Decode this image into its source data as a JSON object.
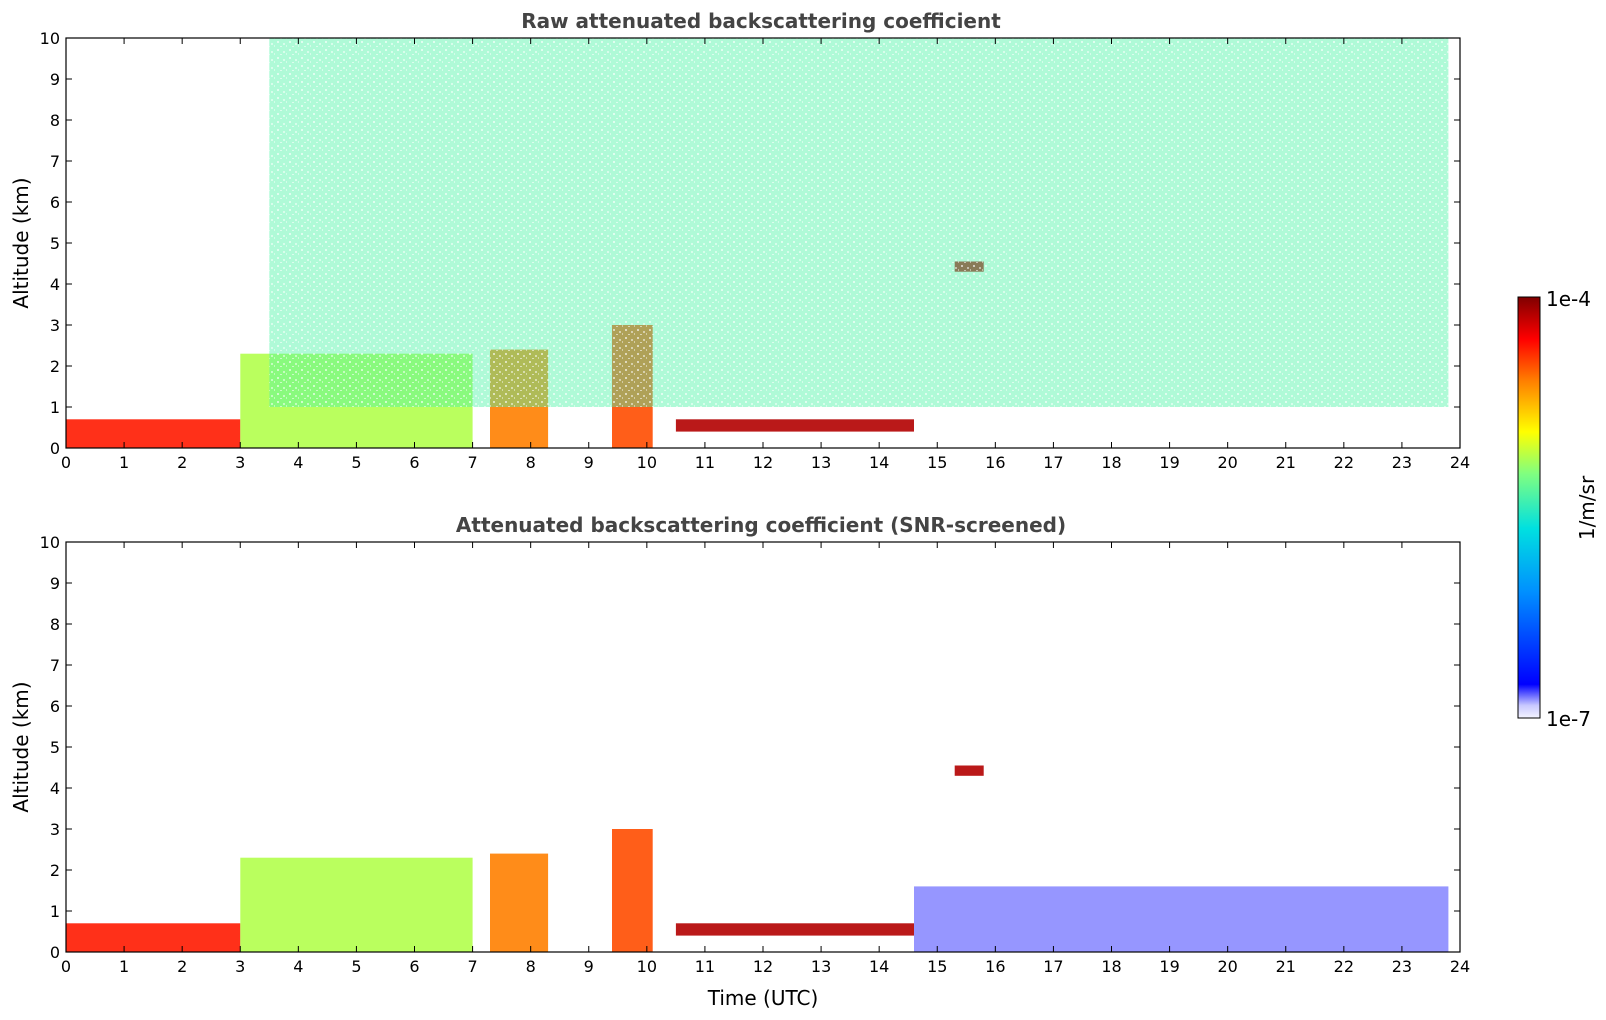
{
  "chart_data": [
    {
      "type": "heatmap",
      "title": "Raw attenuated backscattering coefficient",
      "xlabel": "",
      "ylabel": "Altitude (km)",
      "xlim": [
        0,
        24
      ],
      "ylim": [
        0,
        10
      ],
      "x_ticks": [
        "0",
        "1",
        "2",
        "3",
        "4",
        "5",
        "6",
        "7",
        "8",
        "9",
        "10",
        "11",
        "12",
        "13",
        "14",
        "15",
        "16",
        "17",
        "18",
        "19",
        "20",
        "21",
        "22",
        "23",
        "24"
      ],
      "y_ticks": [
        "0",
        "1",
        "2",
        "3",
        "4",
        "5",
        "6",
        "7",
        "8",
        "9",
        "10"
      ],
      "data_extent_hours": [
        0,
        23.8
      ],
      "features": [
        {
          "name": "near-surface aerosol",
          "t": [
            0,
            3
          ],
          "z": [
            0,
            0.7
          ],
          "level": 0.85
        },
        {
          "name": "boundary-layer clouds",
          "t": [
            3,
            7
          ],
          "z": [
            0,
            2.3
          ],
          "level": 0.55
        },
        {
          "name": "cloud deck",
          "t": [
            7.3,
            8.3
          ],
          "z": [
            0,
            2.4
          ],
          "level": 0.75
        },
        {
          "name": "cloud deck",
          "t": [
            9.4,
            10.1
          ],
          "z": [
            0,
            3.0
          ],
          "level": 0.8
        },
        {
          "name": "thin layer",
          "t": [
            10.5,
            14.6
          ],
          "z": [
            0.4,
            0.7
          ],
          "level": 0.95
        },
        {
          "name": "elevated layer",
          "t": [
            15.3,
            15.8
          ],
          "z": [
            4.3,
            4.55
          ],
          "level": 0.95
        },
        {
          "name": "clear-air background noise",
          "t": [
            3.5,
            23.8
          ],
          "z": [
            1,
            10
          ],
          "level": 0.45
        }
      ]
    },
    {
      "type": "heatmap",
      "title": "Attenuated backscattering coefficient (SNR-screened)",
      "xlabel": "Time (UTC)",
      "ylabel": "Altitude (km)",
      "xlim": [
        0,
        24
      ],
      "ylim": [
        0,
        10
      ],
      "x_ticks": [
        "0",
        "1",
        "2",
        "3",
        "4",
        "5",
        "6",
        "7",
        "8",
        "9",
        "10",
        "11",
        "12",
        "13",
        "14",
        "15",
        "16",
        "17",
        "18",
        "19",
        "20",
        "21",
        "22",
        "23",
        "24"
      ],
      "y_ticks": [
        "0",
        "1",
        "2",
        "3",
        "4",
        "5",
        "6",
        "7",
        "8",
        "9",
        "10"
      ],
      "data_extent_hours": [
        0,
        23.8
      ],
      "features": [
        {
          "name": "near-surface aerosol",
          "t": [
            0,
            3
          ],
          "z": [
            0,
            0.7
          ],
          "level": 0.85
        },
        {
          "name": "boundary-layer clouds",
          "t": [
            3,
            7
          ],
          "z": [
            0,
            2.3
          ],
          "level": 0.55
        },
        {
          "name": "cloud deck",
          "t": [
            7.3,
            8.3
          ],
          "z": [
            0,
            2.4
          ],
          "level": 0.75
        },
        {
          "name": "cloud deck",
          "t": [
            9.4,
            10.1
          ],
          "z": [
            0,
            3.0
          ],
          "level": 0.8
        },
        {
          "name": "thin layer",
          "t": [
            10.5,
            14.6
          ],
          "z": [
            0.4,
            0.7
          ],
          "level": 0.95
        },
        {
          "name": "elevated layer",
          "t": [
            15.3,
            15.8
          ],
          "z": [
            4.3,
            4.55
          ],
          "level": 0.95
        },
        {
          "name": "residual layer",
          "t": [
            14.6,
            23.8
          ],
          "z": [
            0,
            1.6
          ],
          "level": 0.05
        }
      ]
    }
  ],
  "colorbar": {
    "label": "1/m/sr",
    "max_label": "1e-4",
    "min_label": "1e-7",
    "range": [
      1e-07,
      0.0001
    ],
    "scale": "log",
    "colormap": "jet",
    "colors": [
      "#e8e8ff",
      "#0000ff",
      "#00a0ff",
      "#00e0e0",
      "#80ff80",
      "#ffff00",
      "#ff8000",
      "#ff0000",
      "#800000"
    ]
  }
}
